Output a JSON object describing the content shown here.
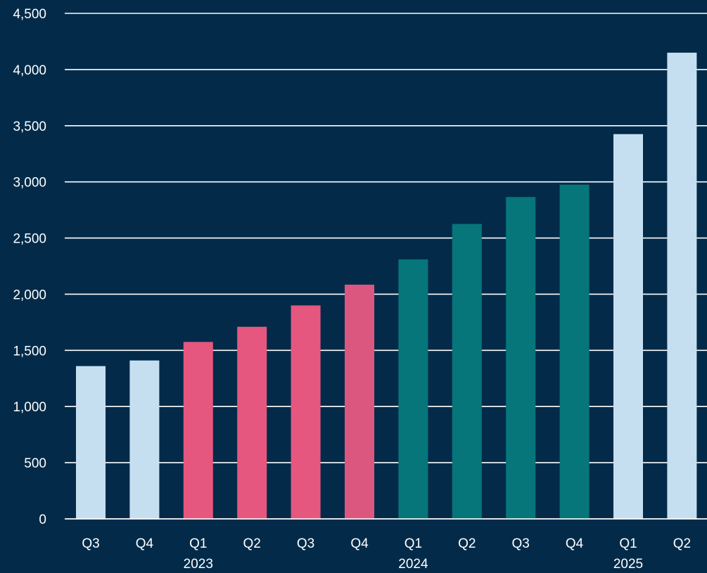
{
  "chart_data": {
    "type": "bar",
    "title": "",
    "xlabel": "",
    "ylabel": "",
    "ylim": [
      0,
      4500
    ],
    "yticks": [
      0,
      500,
      1000,
      1500,
      2000,
      2500,
      3000,
      3500,
      4000,
      4500
    ],
    "ytick_labels": [
      "0",
      "500",
      "1,000",
      "1,500",
      "2,000",
      "2,500",
      "3,000",
      "3,500",
      "4,000",
      "4,500"
    ],
    "grid": true,
    "categories": [
      "Q3",
      "Q4",
      "Q1",
      "Q2",
      "Q3",
      "Q4",
      "Q1",
      "Q2",
      "Q3",
      "Q4",
      "Q1",
      "Q2"
    ],
    "year_labels": [
      {
        "label": "2023",
        "category_index": 2
      },
      {
        "label": "2024",
        "category_index": 6
      },
      {
        "label": "2025",
        "category_index": 10
      }
    ],
    "values": [
      1360,
      1410,
      1575,
      1710,
      1900,
      2085,
      2310,
      2625,
      2865,
      2975,
      3425,
      4150
    ],
    "bar_colors": [
      "#c5dff1",
      "#c5dff1",
      "#e5577f",
      "#e5577f",
      "#e5577f",
      "#dc5780",
      "#06767a",
      "#06767a",
      "#06767a",
      "#06767a",
      "#c5dff1",
      "#c5dff1"
    ]
  },
  "colors": {
    "background": "#032b49",
    "text": "#ffffff",
    "grid": "#ffffff"
  }
}
